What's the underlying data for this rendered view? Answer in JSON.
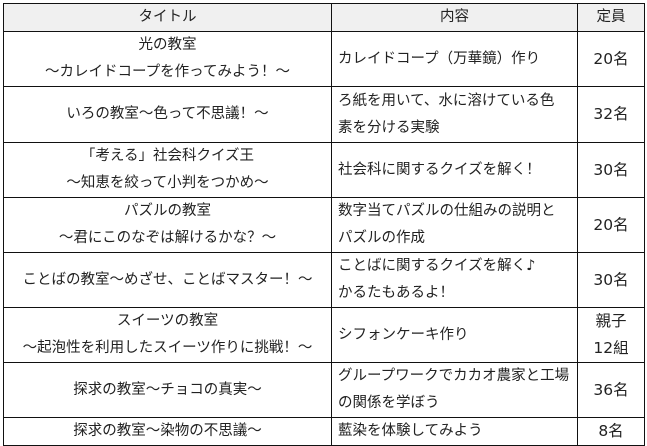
{
  "headers": {
    "title": "タイトル",
    "content": "内容",
    "capacity": "定員"
  },
  "rows": [
    {
      "title": [
        "光の教室",
        "～カレイドコープを作ってみよう！～"
      ],
      "content": [
        "カレイドコープ（万華鏡）作り"
      ],
      "capacity": [
        "20名"
      ]
    },
    {
      "title": [
        "いろの教室～色って不思議！～"
      ],
      "content": [
        "ろ紙を用いて、水に溶けている色",
        "素を分ける実験"
      ],
      "capacity": [
        "32名"
      ]
    },
    {
      "title": [
        "「考える」社会科クイズ王",
        "～知恵を絞って小判をつかめ～"
      ],
      "content": [
        "社会科に関するクイズを解く！"
      ],
      "capacity": [
        "30名"
      ]
    },
    {
      "title": [
        "パズルの教室",
        "～君にこのなぞは解けるかな？～"
      ],
      "content": [
        "数字当てパズルの仕組みの説明と",
        "パズルの作成"
      ],
      "capacity": [
        "20名"
      ]
    },
    {
      "title": [
        "ことばの教室～めざせ、ことばマスター！～"
      ],
      "content": [
        "ことばに関するクイズを解く♪",
        "かるたもあるよ！"
      ],
      "capacity": [
        "30名"
      ]
    },
    {
      "title": [
        "スイーツの教室",
        "～起泡性を利用したスイーツ作りに挑戦！～"
      ],
      "content": [
        "シフォンケーキ作り"
      ],
      "capacity": [
        "親子",
        "12組"
      ]
    },
    {
      "title": [
        "探求の教室～チョコの真実～"
      ],
      "content": [
        "グループワークでカカオ農家と工場",
        "の関係を学ぼう"
      ],
      "capacity": [
        "36名"
      ]
    },
    {
      "title": [
        "探求の教室～染物の不思議～"
      ],
      "content": [
        "藍染を体験してみよう"
      ],
      "capacity": [
        "8名"
      ]
    }
  ]
}
